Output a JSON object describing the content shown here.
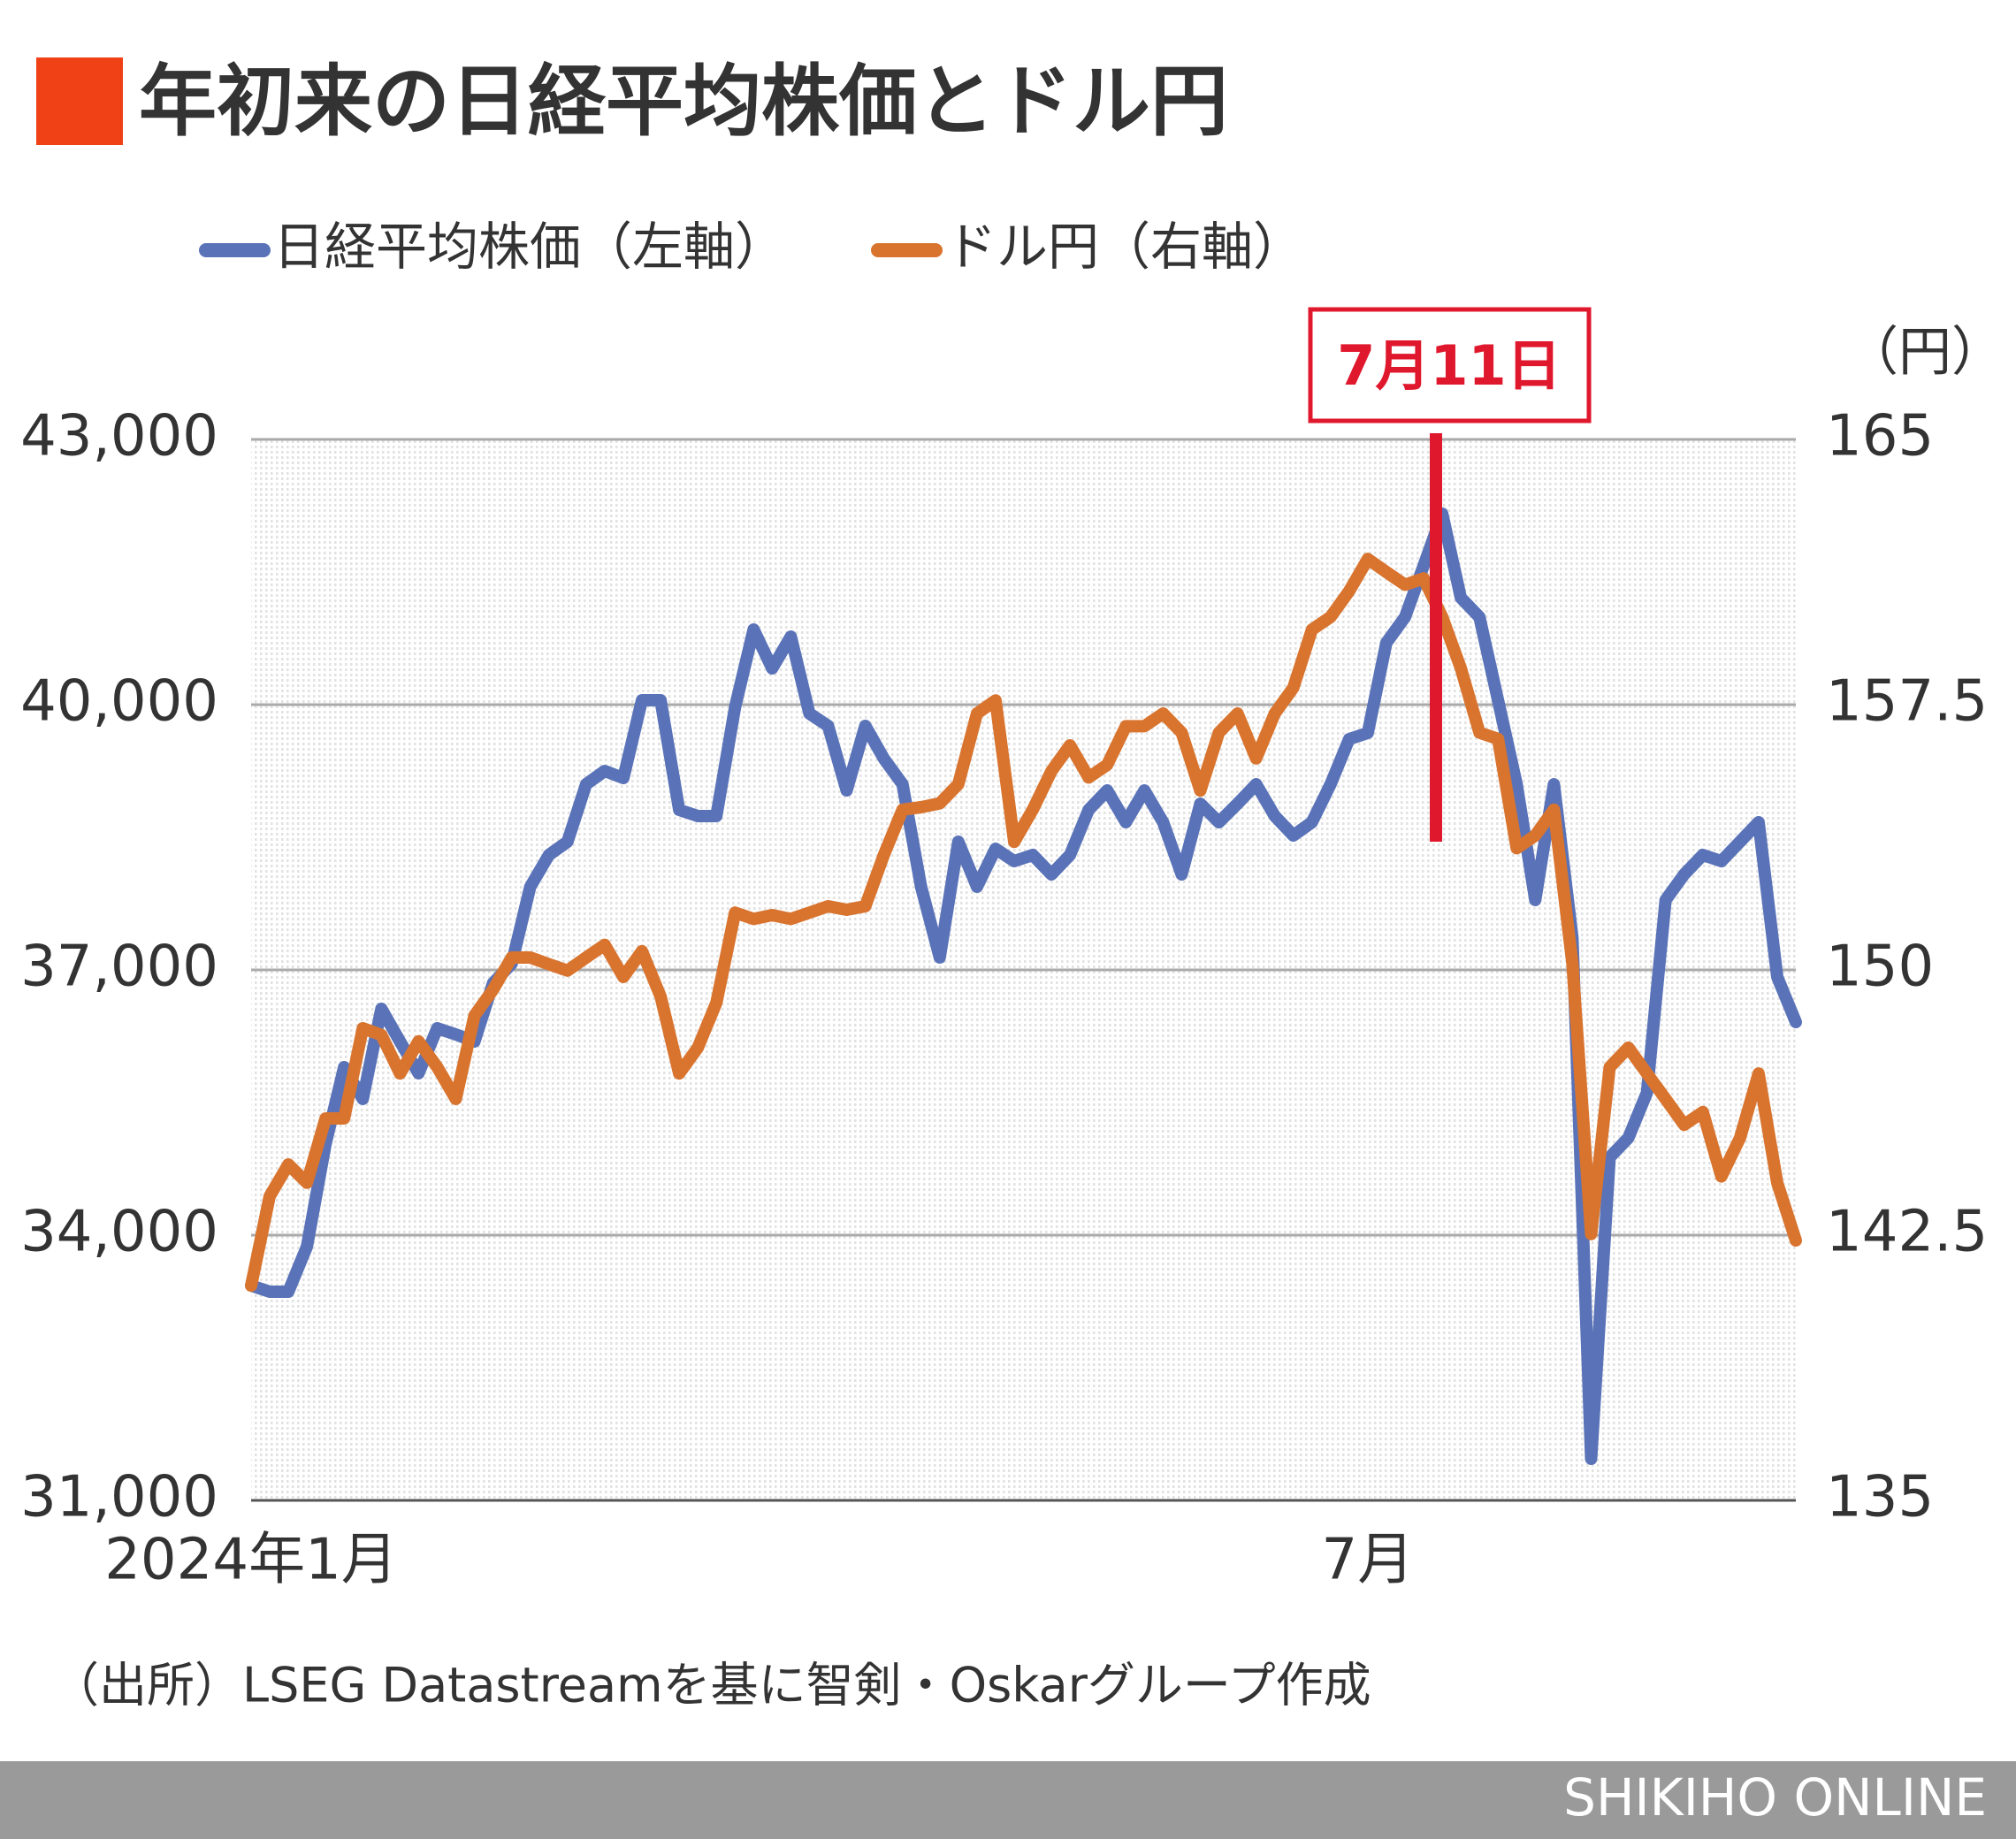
{
  "chart_data": {
    "type": "line",
    "title": "年初来の日経平均株価とドル円",
    "y2_unit": "（円）",
    "annotation": "7月11日",
    "source": "（出所）LSEG Datastreamを基に智剣・Oskarグループ作成",
    "brand": "SHIKIHO ONLINE",
    "categories": [
      "2024年1月",
      null,
      null,
      null,
      null,
      null,
      null,
      null,
      null,
      null,
      null,
      null,
      null,
      null,
      null,
      null,
      null,
      null,
      null,
      null,
      null,
      null,
      null,
      null,
      null,
      null,
      null,
      null,
      null,
      null,
      null,
      null,
      null,
      null,
      null,
      null,
      null,
      null,
      null,
      null,
      null,
      null,
      null,
      null,
      null,
      null,
      null,
      null,
      null,
      null,
      null,
      null,
      null,
      null,
      null,
      null,
      null,
      null,
      null,
      null,
      "7月",
      null,
      null,
      null,
      null,
      null,
      null,
      null,
      null,
      null,
      null,
      null,
      null,
      null,
      null,
      null,
      null,
      null,
      null,
      null,
      null,
      null,
      null,
      null
    ],
    "series": [
      {
        "name": "日経平均株価（左軸）",
        "color": "#5a73b8",
        "values": [
          33430,
          33360,
          33360,
          33870,
          35030,
          35900,
          35540,
          36560,
          36190,
          35830,
          36340,
          36270,
          36190,
          36850,
          37070,
          37940,
          38300,
          38450,
          39100,
          39250,
          39170,
          40050,
          40050,
          38810,
          38740,
          38740,
          39970,
          40850,
          40410,
          40770,
          39900,
          39760,
          39030,
          39760,
          39390,
          39100,
          37940,
          37140,
          38450,
          37940,
          38370,
          38230,
          38300,
          38080,
          38300,
          38810,
          39030,
          38670,
          39030,
          38670,
          38080,
          38880,
          38670,
          38880,
          39100,
          38740,
          38520,
          38670,
          39100,
          39610,
          39680,
          40700,
          40990,
          41570,
          42160,
          41210,
          40990,
          40050,
          39100,
          37790,
          39100,
          37360,
          31470,
          34880,
          35100,
          35610,
          37790,
          38080,
          38300,
          38230,
          38450,
          38670,
          36920,
          36410
        ]
      },
      {
        "name": "ドル円（右軸）",
        "color": "#d9742f",
        "axis": "y2",
        "values": [
          141.07,
          143.6,
          144.5,
          143.98,
          145.8,
          145.8,
          148.35,
          148.16,
          147.07,
          147.98,
          147.25,
          146.35,
          148.71,
          149.44,
          150.35,
          150.35,
          150.16,
          149.98,
          150.35,
          150.71,
          149.8,
          150.53,
          149.25,
          147.07,
          147.8,
          149.07,
          151.62,
          151.44,
          151.55,
          151.44,
          151.62,
          151.8,
          151.7,
          151.8,
          153.25,
          154.53,
          154.6,
          154.71,
          155.25,
          157.25,
          157.62,
          153.62,
          154.53,
          155.62,
          156.35,
          155.44,
          155.8,
          156.89,
          156.89,
          157.25,
          156.71,
          155.07,
          156.71,
          157.25,
          155.98,
          157.25,
          157.98,
          159.62,
          159.98,
          160.71,
          161.62,
          161.25,
          160.89,
          161.07,
          159.98,
          158.53,
          156.71,
          156.53,
          153.44,
          153.8,
          154.53,
          150.16,
          142.53,
          147.25,
          147.8,
          147.07,
          146.35,
          145.62,
          145.98,
          144.16,
          145.25,
          147.07,
          143.98,
          142.35
        ]
      }
    ],
    "ylim": [
      31000,
      43000
    ],
    "yticks": [
      {
        "value": 31000,
        "label": "31,000"
      },
      {
        "value": 34000,
        "label": "34,000"
      },
      {
        "value": 37000,
        "label": "37,000"
      },
      {
        "value": 40000,
        "label": "40,000"
      },
      {
        "value": 43000,
        "label": "43,000"
      }
    ],
    "y2lim": [
      135,
      165
    ],
    "y2ticks": [
      135,
      142.5,
      150,
      157.5,
      165
    ],
    "grid": true
  }
}
